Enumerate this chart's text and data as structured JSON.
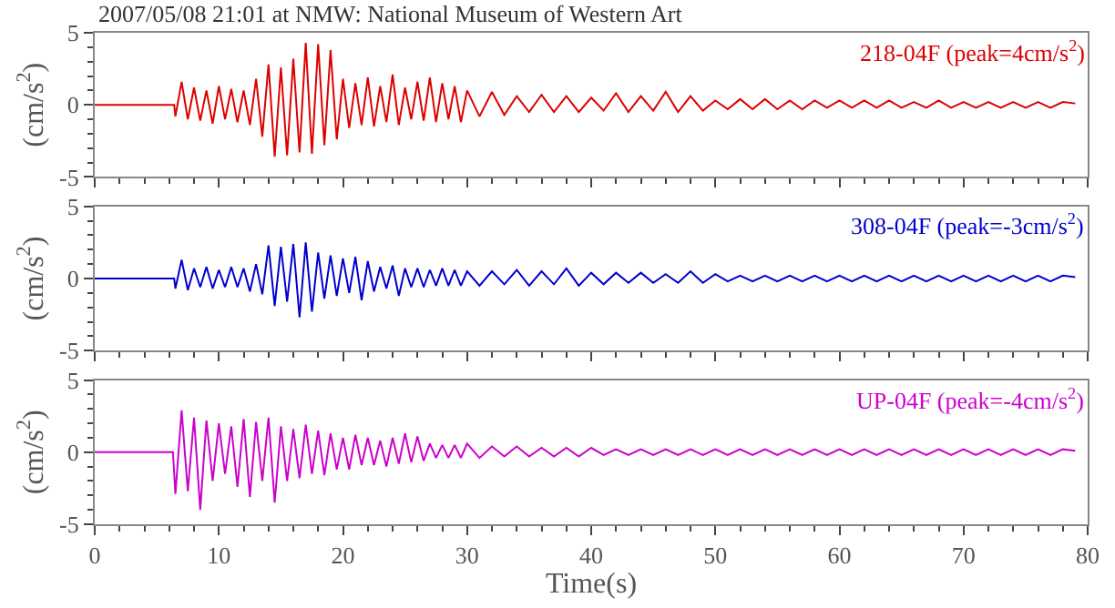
{
  "chart_data": [
    {
      "type": "line",
      "title": "2007/05/08 21:01 at NMW: National Museum of Western Art",
      "ylabel": "(cm/s$^{2}$)",
      "tick_labels": "y",
      "x": [
        0,
        6.4,
        6.5,
        7,
        7.5,
        8,
        8.5,
        9,
        9.5,
        10,
        10.5,
        11,
        11.5,
        12,
        12.5,
        13,
        13.5,
        14,
        14.5,
        15,
        15.5,
        16,
        16.5,
        17,
        17.5,
        18,
        18.5,
        19,
        19.5,
        20,
        20.5,
        21,
        21.5,
        22,
        22.5,
        23,
        23.5,
        24,
        24.5,
        25,
        25.5,
        26,
        26.5,
        27,
        27.5,
        28,
        28.5,
        29,
        29.5,
        30,
        31,
        32,
        33,
        34,
        35,
        36,
        37,
        38,
        39,
        40,
        41,
        42,
        43,
        44,
        45,
        46,
        47,
        48,
        49,
        50,
        51,
        52,
        53,
        54,
        55,
        56,
        57,
        58,
        59,
        60,
        61,
        62,
        63,
        64,
        65,
        66,
        67,
        68,
        69,
        70,
        71,
        72,
        73,
        74,
        75,
        76,
        77,
        78,
        79
      ],
      "xlim": [
        0,
        80
      ],
      "xticks": [
        0,
        10,
        20,
        30,
        40,
        50,
        60,
        70,
        80
      ],
      "ylim": [
        -5,
        5
      ],
      "yticks": [
        -5,
        0,
        5
      ],
      "series": [
        {
          "name": "218-04F (peak=4cm/s$^{2}$)",
          "color": "#dd0000",
          "values": [
            0,
            0,
            -0.8,
            1.6,
            -1.0,
            1.2,
            -1.1,
            1.0,
            -1.3,
            1.3,
            -1.0,
            1.1,
            -1.2,
            1.0,
            -1.4,
            1.8,
            -2.2,
            2.8,
            -3.6,
            2.6,
            -3.5,
            3.2,
            -3.3,
            4.3,
            -3.4,
            4.2,
            -2.8,
            3.8,
            -2.4,
            1.8,
            -1.6,
            1.5,
            -1.4,
            1.9,
            -1.5,
            1.3,
            -1.2,
            2.1,
            -1.4,
            1.2,
            -1.0,
            1.6,
            -1.1,
            1.9,
            -1.2,
            1.5,
            -1.0,
            1.3,
            -1.2,
            1.0,
            -0.8,
            0.9,
            -0.7,
            0.6,
            -0.5,
            0.7,
            -0.5,
            0.6,
            -0.5,
            0.5,
            -0.4,
            0.8,
            -0.5,
            0.6,
            -0.4,
            0.9,
            -0.5,
            0.6,
            -0.4,
            0.3,
            -0.3,
            0.4,
            -0.3,
            0.4,
            -0.3,
            0.3,
            -0.3,
            0.3,
            -0.2,
            0.3,
            -0.2,
            0.3,
            -0.2,
            0.3,
            -0.2,
            0.2,
            -0.2,
            0.3,
            -0.2,
            0.2,
            -0.2,
            0.2,
            -0.2,
            0.2,
            -0.2,
            0.2,
            -0.2,
            0.2,
            0.1
          ]
        }
      ]
    },
    {
      "type": "line",
      "ylabel": "(cm/s$^{2}$)",
      "tick_labels": "y",
      "x": [
        0,
        6.4,
        6.5,
        7,
        7.5,
        8,
        8.5,
        9,
        9.5,
        10,
        10.5,
        11,
        11.5,
        12,
        12.5,
        13,
        13.5,
        14,
        14.5,
        15,
        15.5,
        16,
        16.5,
        17,
        17.5,
        18,
        18.5,
        19,
        19.5,
        20,
        20.5,
        21,
        21.5,
        22,
        22.5,
        23,
        23.5,
        24,
        24.5,
        25,
        25.5,
        26,
        26.5,
        27,
        27.5,
        28,
        28.5,
        29,
        29.5,
        30,
        31,
        32,
        33,
        34,
        35,
        36,
        37,
        38,
        39,
        40,
        41,
        42,
        43,
        44,
        45,
        46,
        47,
        48,
        49,
        50,
        51,
        52,
        53,
        54,
        55,
        56,
        57,
        58,
        59,
        60,
        61,
        62,
        63,
        64,
        65,
        66,
        67,
        68,
        69,
        70,
        71,
        72,
        73,
        74,
        75,
        76,
        77,
        78,
        79
      ],
      "xlim": [
        0,
        80
      ],
      "xticks": [
        0,
        10,
        20,
        30,
        40,
        50,
        60,
        70,
        80
      ],
      "ylim": [
        -5,
        5
      ],
      "yticks": [
        -5,
        0,
        5
      ],
      "series": [
        {
          "name": "308-04F (peak=-3cm/s$^{2}$)",
          "color": "#0000cc",
          "values": [
            0,
            0,
            -0.7,
            1.3,
            -0.8,
            0.7,
            -0.6,
            0.8,
            -0.7,
            0.6,
            -0.6,
            0.8,
            -0.6,
            0.7,
            -0.9,
            1.0,
            -1.1,
            2.3,
            -1.9,
            2.2,
            -1.6,
            2.4,
            -2.7,
            2.5,
            -2.3,
            1.8,
            -1.4,
            1.6,
            -1.2,
            1.4,
            -1.0,
            1.5,
            -1.5,
            1.2,
            -0.9,
            0.8,
            -0.7,
            0.9,
            -1.2,
            0.7,
            -0.6,
            0.7,
            -0.6,
            0.6,
            -0.5,
            0.7,
            -0.5,
            0.6,
            -0.5,
            0.5,
            -0.5,
            0.5,
            -0.4,
            0.6,
            -0.5,
            0.5,
            -0.4,
            0.7,
            -0.5,
            0.4,
            -0.4,
            0.4,
            -0.3,
            0.4,
            -0.3,
            0.3,
            -0.3,
            0.5,
            -0.3,
            0.3,
            -0.2,
            0.2,
            -0.2,
            0.2,
            -0.2,
            0.2,
            -0.2,
            0.2,
            -0.2,
            0.2,
            -0.2,
            0.2,
            -0.2,
            0.2,
            -0.2,
            0.2,
            -0.2,
            0.2,
            -0.2,
            0.2,
            -0.2,
            0.2,
            -0.2,
            0.2,
            -0.2,
            0.2,
            -0.2,
            0.2,
            0.1
          ]
        }
      ]
    },
    {
      "type": "line",
      "ylabel": "(cm/s$^{2}$)",
      "xlabel": "Time(s)",
      "x": [
        0,
        6.3,
        6.5,
        7,
        7.5,
        8,
        8.5,
        9,
        9.5,
        10,
        10.5,
        11,
        11.5,
        12,
        12.5,
        13,
        13.5,
        14,
        14.5,
        15,
        15.5,
        16,
        16.5,
        17,
        17.5,
        18,
        18.5,
        19,
        19.5,
        20,
        20.5,
        21,
        21.5,
        22,
        22.5,
        23,
        23.5,
        24,
        24.5,
        25,
        25.5,
        26,
        26.5,
        27,
        27.5,
        28,
        28.5,
        29,
        29.5,
        30,
        31,
        32,
        33,
        34,
        35,
        36,
        37,
        38,
        39,
        40,
        41,
        42,
        43,
        44,
        45,
        46,
        47,
        48,
        49,
        50,
        51,
        52,
        53,
        54,
        55,
        56,
        57,
        58,
        59,
        60,
        61,
        62,
        63,
        64,
        65,
        66,
        67,
        68,
        69,
        70,
        71,
        72,
        73,
        74,
        75,
        76,
        77,
        78,
        79
      ],
      "xlim": [
        0,
        80
      ],
      "xticks": [
        0,
        10,
        20,
        30,
        40,
        50,
        60,
        70,
        80
      ],
      "ylim": [
        -5,
        5
      ],
      "yticks": [
        -5,
        0,
        5
      ],
      "series": [
        {
          "name": "UP-04F (peak=-4cm/s$^{2}$)",
          "color": "#cc00cc",
          "values": [
            0,
            0,
            -2.9,
            2.9,
            -2.7,
            2.4,
            -4.0,
            2.2,
            -2.0,
            2.0,
            -1.5,
            1.8,
            -2.4,
            2.3,
            -3.1,
            2.1,
            -2.0,
            2.4,
            -3.5,
            1.8,
            -2.0,
            1.6,
            -1.8,
            1.9,
            -1.5,
            1.5,
            -1.6,
            1.3,
            -1.2,
            1.0,
            -1.2,
            1.2,
            -0.9,
            1.0,
            -0.9,
            0.8,
            -1.0,
            1.0,
            -0.8,
            1.3,
            -0.7,
            1.1,
            -0.6,
            0.6,
            -0.4,
            0.5,
            -0.4,
            0.5,
            -0.4,
            0.6,
            -0.4,
            0.4,
            -0.3,
            0.4,
            -0.3,
            0.3,
            -0.3,
            0.3,
            -0.3,
            0.3,
            -0.2,
            0.2,
            -0.2,
            0.2,
            -0.2,
            0.2,
            -0.2,
            0.2,
            -0.2,
            0.2,
            -0.2,
            0.2,
            -0.2,
            0.2,
            -0.2,
            0.2,
            -0.2,
            0.2,
            -0.2,
            0.2,
            -0.2,
            0.2,
            -0.2,
            0.2,
            -0.2,
            0.2,
            -0.2,
            0.2,
            -0.2,
            0.2,
            -0.2,
            0.2,
            -0.2,
            0.2,
            -0.2,
            0.2,
            -0.2,
            0.2,
            0.1
          ]
        }
      ]
    }
  ]
}
